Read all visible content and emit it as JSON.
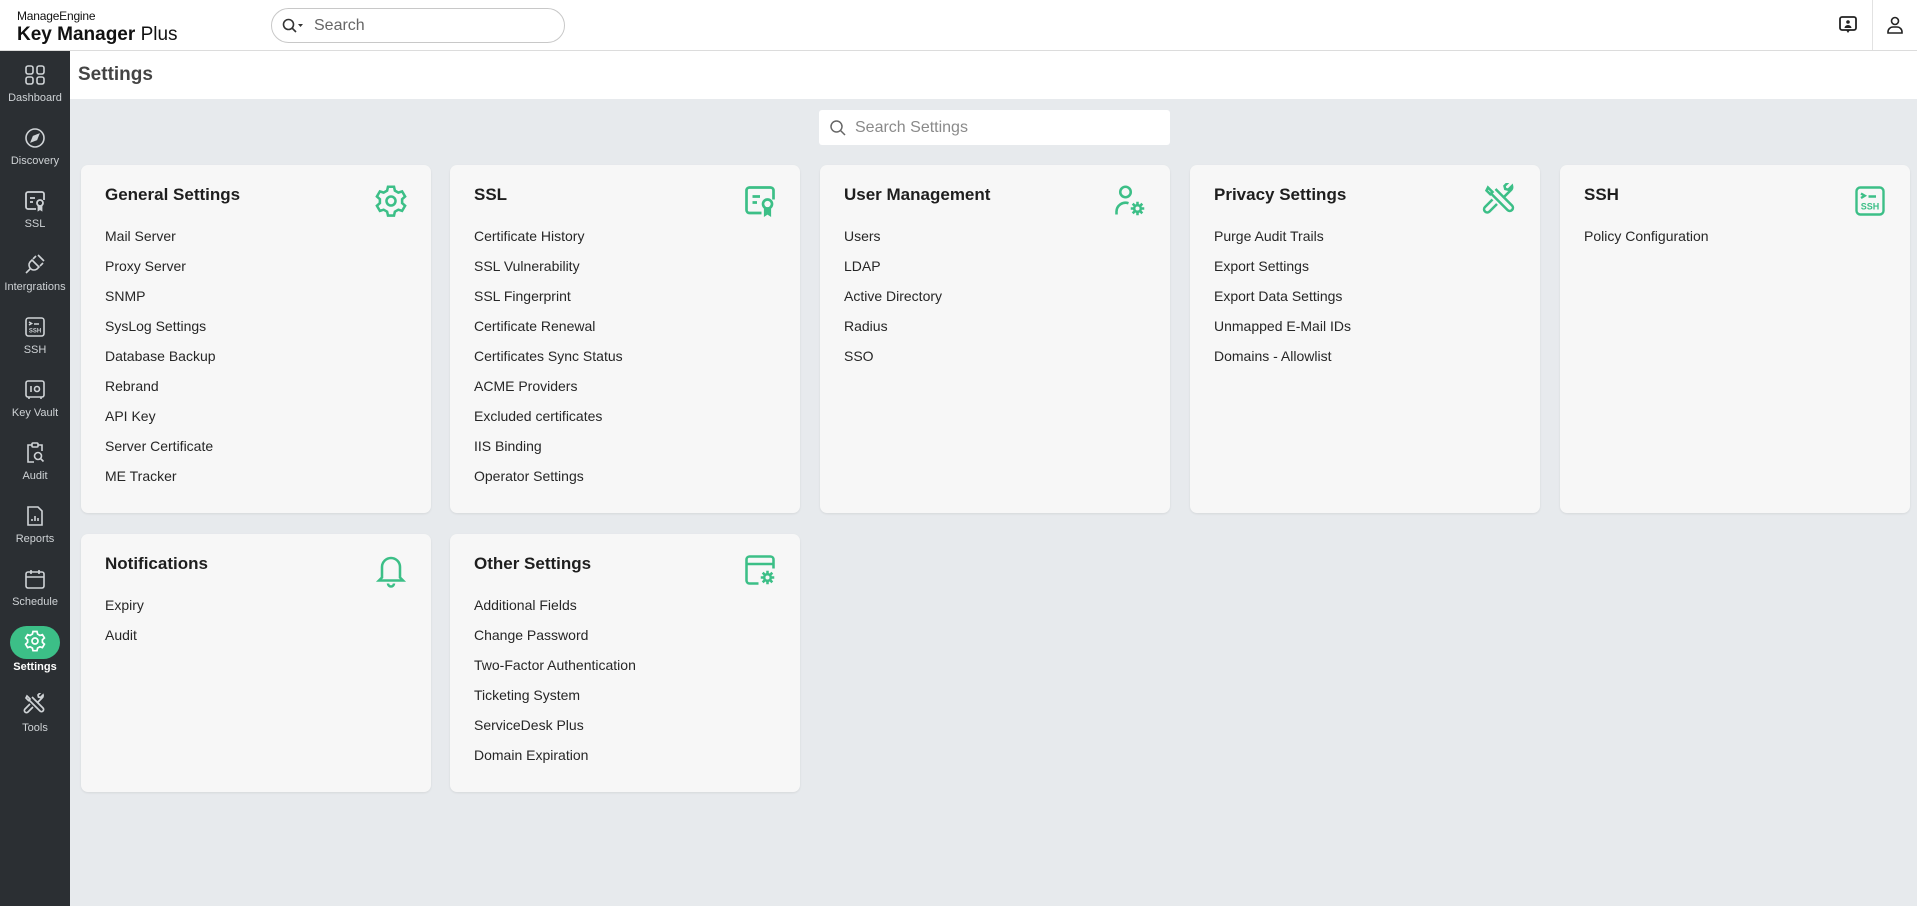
{
  "header": {
    "brand": "ManageEngine",
    "product_light": "Plus",
    "product_bold": "Key Manager",
    "search_placeholder": "Search"
  },
  "sidebar": {
    "items": [
      {
        "label": "Dashboard",
        "icon": "dashboard-icon"
      },
      {
        "label": "Discovery",
        "icon": "compass-icon"
      },
      {
        "label": "SSL",
        "icon": "certificate-icon"
      },
      {
        "label": "Intergrations",
        "icon": "plug-icon"
      },
      {
        "label": "SSH",
        "icon": "ssh-icon"
      },
      {
        "label": "Key Vault",
        "icon": "vault-icon"
      },
      {
        "label": "Audit",
        "icon": "audit-icon"
      },
      {
        "label": "Reports",
        "icon": "reports-icon"
      },
      {
        "label": "Schedule",
        "icon": "calendar-icon"
      },
      {
        "label": "Settings",
        "icon": "gear-icon",
        "active": true
      },
      {
        "label": "Tools",
        "icon": "tools-icon"
      }
    ]
  },
  "page": {
    "title": "Settings",
    "search_placeholder": "Search Settings"
  },
  "accent": "#3cbf87",
  "cards": [
    {
      "title": "General Settings",
      "icon": "gear-icon",
      "items": [
        "Mail Server",
        "Proxy Server",
        "SNMP",
        "SysLog Settings",
        "Database Backup",
        "Rebrand",
        "API Key",
        "Server Certificate",
        "ME Tracker"
      ]
    },
    {
      "title": "SSL",
      "icon": "certificate-icon",
      "items": [
        "Certificate History",
        "SSL Vulnerability",
        "SSL Fingerprint",
        "Certificate Renewal",
        "Certificates Sync Status",
        "ACME Providers",
        "Excluded certificates",
        "IIS Binding",
        "Operator Settings"
      ]
    },
    {
      "title": "User Management",
      "icon": "user-gear-icon",
      "items": [
        "Users",
        "LDAP",
        "Active Directory",
        "Radius",
        "SSO"
      ]
    },
    {
      "title": "Privacy Settings",
      "icon": "tools-icon",
      "items": [
        "Purge Audit Trails",
        "Export Settings",
        "Export Data Settings",
        "Unmapped E-Mail IDs",
        "Domains - Allowlist"
      ]
    },
    {
      "title": "SSH",
      "icon": "ssh-icon",
      "items": [
        "Policy Configuration"
      ]
    },
    {
      "title": "Notifications",
      "icon": "bell-icon",
      "items": [
        "Expiry",
        "Audit"
      ]
    },
    {
      "title": "Other Settings",
      "icon": "window-gear-icon",
      "items": [
        "Additional Fields",
        "Change Password",
        "Two-Factor Authentication",
        "Ticketing System",
        "ServiceDesk Plus",
        "Domain Expiration"
      ]
    }
  ]
}
